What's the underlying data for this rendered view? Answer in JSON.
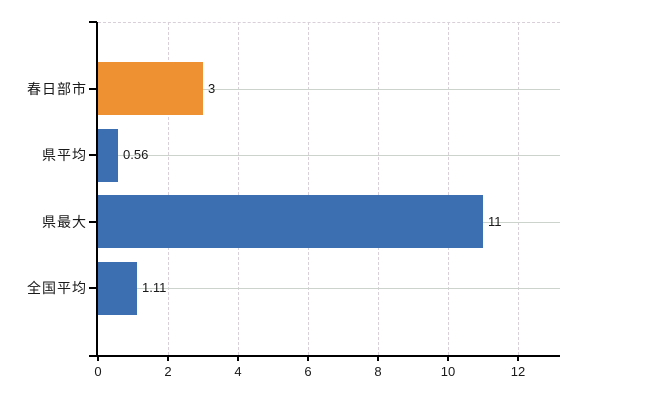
{
  "chart_data": {
    "type": "bar",
    "orientation": "horizontal",
    "title": "",
    "xlabel": "",
    "ylabel": "",
    "categories": [
      "春日部市",
      "県平均",
      "県最大",
      "全国平均"
    ],
    "values": [
      3,
      0.56,
      11,
      1.11
    ],
    "value_labels": [
      "3",
      "0.56",
      "11",
      "1.11"
    ],
    "bar_colors": [
      "#ee9133",
      "#3b6fb1",
      "#3b6fb1",
      "#3b6fb1"
    ],
    "x_ticks": [
      0,
      2,
      4,
      6,
      8,
      10,
      12
    ],
    "x_tick_labels": [
      "0",
      "2",
      "4",
      "6",
      "8",
      "10",
      "12"
    ],
    "xlim": [
      0,
      13.2
    ],
    "grid": "vertical dashed lines at x ticks; horizontal solid lines at category centers; dashed top border",
    "legend_position": "none",
    "colors": {
      "bar_highlight": "#ee9133",
      "bar_default": "#3b6fb1",
      "axis": "#000000",
      "grid_vertical": "#d8cfd8",
      "grid_horizontal": "#ccd3cc",
      "text": "#1a1a1a",
      "background": "#ffffff"
    }
  }
}
